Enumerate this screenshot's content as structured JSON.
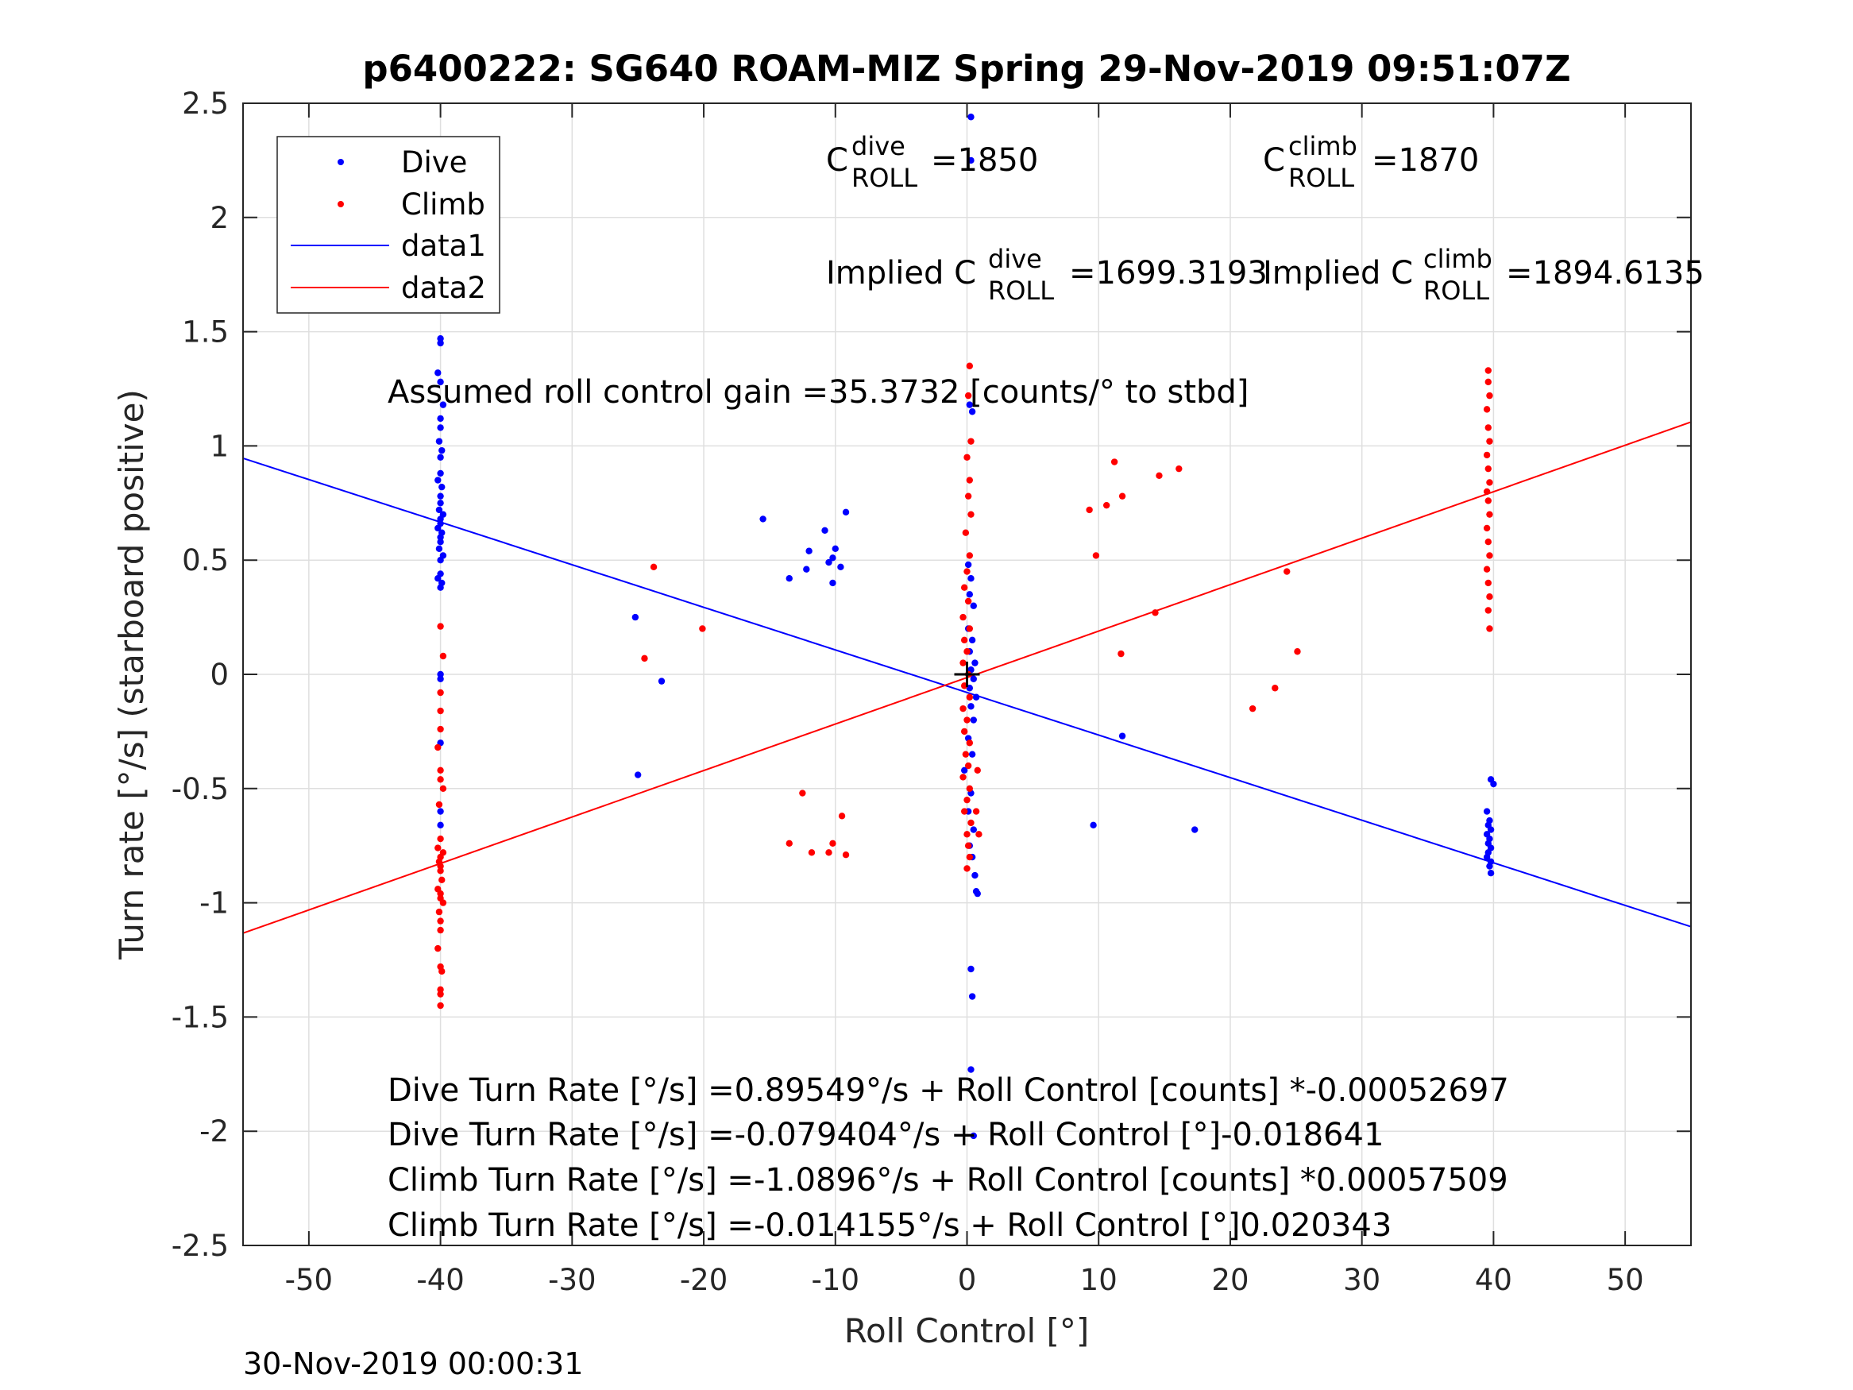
{
  "chart_data": {
    "type": "scatter",
    "title": "p6400222: SG640 ROAM-MIZ Spring 29-Nov-2019 09:51:07Z",
    "xlabel": "Roll Control [°]",
    "ylabel": "Turn rate [°/s] (starboard positive)",
    "xlim": [
      -55,
      55
    ],
    "ylim": [
      -2.5,
      2.5
    ],
    "xticks": [
      -50,
      -40,
      -30,
      -20,
      -10,
      0,
      10,
      20,
      30,
      40,
      50
    ],
    "yticks": [
      -2.5,
      -2,
      -1.5,
      -1,
      -0.5,
      0,
      0.5,
      1,
      1.5,
      2,
      2.5
    ],
    "xtick_labels": [
      "-50",
      "-40",
      "-30",
      "-20",
      "-10",
      "0",
      "10",
      "20",
      "30",
      "40",
      "50"
    ],
    "ytick_labels": [
      "-2.5",
      "-2",
      "-1.5",
      "-1",
      "-0.5",
      "0",
      "0.5",
      "1",
      "1.5",
      "2",
      "2.5"
    ],
    "grid": true,
    "legend_position": "top-left",
    "legend": [
      {
        "name": "Dive",
        "style": "dots",
        "color": "#0000ff"
      },
      {
        "name": "Climb",
        "style": "dots",
        "color": "#ff0000"
      },
      {
        "name": "data1",
        "style": "line",
        "color": "#0000ff"
      },
      {
        "name": "data2",
        "style": "line",
        "color": "#ff0000"
      }
    ],
    "series": [
      {
        "name": "Dive",
        "color": "#0000ff",
        "points": [
          [
            -40,
            1.47
          ],
          [
            -40,
            1.45
          ],
          [
            -40.2,
            1.32
          ],
          [
            -40,
            1.28
          ],
          [
            -39.8,
            1.18
          ],
          [
            -40,
            1.12
          ],
          [
            -40,
            1.08
          ],
          [
            -40.1,
            1.02
          ],
          [
            -39.9,
            0.98
          ],
          [
            -40,
            0.95
          ],
          [
            -40,
            0.88
          ],
          [
            -40.2,
            0.85
          ],
          [
            -39.9,
            0.82
          ],
          [
            -40,
            0.78
          ],
          [
            -40,
            0.75
          ],
          [
            -40.1,
            0.72
          ],
          [
            -39.8,
            0.7
          ],
          [
            -40,
            0.68
          ],
          [
            -40,
            0.66
          ],
          [
            -40.2,
            0.64
          ],
          [
            -39.9,
            0.62
          ],
          [
            -40,
            0.6
          ],
          [
            -40,
            0.58
          ],
          [
            -40.1,
            0.55
          ],
          [
            -39.8,
            0.52
          ],
          [
            -40,
            0.5
          ],
          [
            -40,
            0.44
          ],
          [
            -40.2,
            0.42
          ],
          [
            -39.9,
            0.4
          ],
          [
            -40,
            0.38
          ],
          [
            -40,
            0.0
          ],
          [
            -40,
            -0.02
          ],
          [
            -40,
            -0.3
          ],
          [
            -40,
            -0.6
          ],
          [
            -40,
            -0.66
          ],
          [
            -25.2,
            0.25
          ],
          [
            -23.2,
            -0.03
          ],
          [
            -25,
            -0.44
          ],
          [
            -15.5,
            0.68
          ],
          [
            -13.5,
            0.42
          ],
          [
            -12.2,
            0.46
          ],
          [
            -12,
            0.54
          ],
          [
            -10.8,
            0.63
          ],
          [
            -10.5,
            0.49
          ],
          [
            -10.2,
            0.51
          ],
          [
            -10,
            0.55
          ],
          [
            -10.2,
            0.4
          ],
          [
            -9.6,
            0.47
          ],
          [
            -9.2,
            0.71
          ],
          [
            0.3,
            2.44
          ],
          [
            0.3,
            2.25
          ],
          [
            0.2,
            1.18
          ],
          [
            0.4,
            1.15
          ],
          [
            0.1,
            0.48
          ],
          [
            0.3,
            0.42
          ],
          [
            0.2,
            0.35
          ],
          [
            0.5,
            0.3
          ],
          [
            0.1,
            0.2
          ],
          [
            0.4,
            0.15
          ],
          [
            0.2,
            0.1
          ],
          [
            0.6,
            0.05
          ],
          [
            0.3,
            0.02
          ],
          [
            0.5,
            -0.02
          ],
          [
            0.2,
            -0.06
          ],
          [
            0.7,
            -0.1
          ],
          [
            0.3,
            -0.14
          ],
          [
            0.5,
            -0.2
          ],
          [
            0.1,
            -0.28
          ],
          [
            0.4,
            -0.35
          ],
          [
            -0.2,
            -0.42
          ],
          [
            0.3,
            -0.52
          ],
          [
            0.1,
            -0.6
          ],
          [
            0.5,
            -0.68
          ],
          [
            0.2,
            -0.75
          ],
          [
            0.4,
            -0.8
          ],
          [
            0.6,
            -0.88
          ],
          [
            0.7,
            -0.95
          ],
          [
            0.8,
            -0.96
          ],
          [
            0.3,
            -1.29
          ],
          [
            0.4,
            -1.41
          ],
          [
            0.3,
            -1.73
          ],
          [
            0.5,
            -2.02
          ],
          [
            11.8,
            -0.27
          ],
          [
            9.6,
            -0.66
          ],
          [
            17.3,
            -0.68
          ],
          [
            39.8,
            -0.46
          ],
          [
            40,
            -0.48
          ],
          [
            39.5,
            -0.6
          ],
          [
            39.7,
            -0.64
          ],
          [
            39.6,
            -0.66
          ],
          [
            39.8,
            -0.68
          ],
          [
            39.5,
            -0.7
          ],
          [
            39.7,
            -0.72
          ],
          [
            39.6,
            -0.74
          ],
          [
            39.8,
            -0.76
          ],
          [
            39.6,
            -0.78
          ],
          [
            39.5,
            -0.8
          ],
          [
            39.8,
            -0.82
          ],
          [
            39.7,
            -0.84
          ],
          [
            39.8,
            -0.87
          ]
        ]
      },
      {
        "name": "Climb",
        "color": "#ff0000",
        "points": [
          [
            -40,
            0.21
          ],
          [
            -39.8,
            0.08
          ],
          [
            -40,
            -0.08
          ],
          [
            -40,
            -0.16
          ],
          [
            -40,
            -0.24
          ],
          [
            -40.2,
            -0.32
          ],
          [
            -40,
            -0.42
          ],
          [
            -40,
            -0.46
          ],
          [
            -39.8,
            -0.5
          ],
          [
            -40.1,
            -0.57
          ],
          [
            -40,
            -0.72
          ],
          [
            -40.2,
            -0.76
          ],
          [
            -39.8,
            -0.78
          ],
          [
            -40,
            -0.8
          ],
          [
            -40.1,
            -0.82
          ],
          [
            -40,
            -0.84
          ],
          [
            -40,
            -0.86
          ],
          [
            -39.9,
            -0.9
          ],
          [
            -40.2,
            -0.94
          ],
          [
            -40,
            -0.96
          ],
          [
            -40,
            -0.98
          ],
          [
            -39.8,
            -1.0
          ],
          [
            -40.1,
            -1.04
          ],
          [
            -40,
            -1.08
          ],
          [
            -40,
            -1.12
          ],
          [
            -40.2,
            -1.2
          ],
          [
            -40,
            -1.28
          ],
          [
            -39.9,
            -1.3
          ],
          [
            -40,
            -1.38
          ],
          [
            -40,
            -1.4
          ],
          [
            -40,
            -1.45
          ],
          [
            -23.8,
            0.47
          ],
          [
            -24.5,
            0.07
          ],
          [
            -20.1,
            0.2
          ],
          [
            -12.5,
            -0.52
          ],
          [
            -13.5,
            -0.74
          ],
          [
            -11.8,
            -0.78
          ],
          [
            -10.5,
            -0.78
          ],
          [
            -10.2,
            -0.74
          ],
          [
            -9.5,
            -0.62
          ],
          [
            -9.2,
            -0.79
          ],
          [
            0.2,
            1.35
          ],
          [
            0.1,
            1.22
          ],
          [
            0.3,
            1.02
          ],
          [
            0.0,
            0.95
          ],
          [
            0.2,
            0.85
          ],
          [
            0.1,
            0.78
          ],
          [
            0.3,
            0.7
          ],
          [
            -0.1,
            0.62
          ],
          [
            0.2,
            0.52
          ],
          [
            0.0,
            0.45
          ],
          [
            -0.2,
            0.38
          ],
          [
            0.1,
            0.32
          ],
          [
            -0.3,
            0.25
          ],
          [
            0.2,
            0.2
          ],
          [
            -0.2,
            0.15
          ],
          [
            0.0,
            0.1
          ],
          [
            -0.3,
            0.05
          ],
          [
            0.1,
            0.0
          ],
          [
            -0.2,
            -0.05
          ],
          [
            0.2,
            -0.1
          ],
          [
            -0.3,
            -0.15
          ],
          [
            0.0,
            -0.2
          ],
          [
            -0.2,
            -0.25
          ],
          [
            0.2,
            -0.3
          ],
          [
            -0.1,
            -0.35
          ],
          [
            0.1,
            -0.4
          ],
          [
            -0.3,
            -0.45
          ],
          [
            0.2,
            -0.5
          ],
          [
            0.0,
            -0.55
          ],
          [
            -0.2,
            -0.6
          ],
          [
            0.3,
            -0.65
          ],
          [
            0.0,
            -0.7
          ],
          [
            0.1,
            -0.75
          ],
          [
            0.2,
            -0.8
          ],
          [
            0.0,
            -0.85
          ],
          [
            0.8,
            -0.42
          ],
          [
            0.7,
            -0.6
          ],
          [
            0.9,
            -0.7
          ],
          [
            9.3,
            0.72
          ],
          [
            10.6,
            0.74
          ],
          [
            11.2,
            0.93
          ],
          [
            11.8,
            0.78
          ],
          [
            9.8,
            0.52
          ],
          [
            14.6,
            0.87
          ],
          [
            16.1,
            0.9
          ],
          [
            11.7,
            0.09
          ],
          [
            14.3,
            0.27
          ],
          [
            21.7,
            -0.15
          ],
          [
            23.4,
            -0.06
          ],
          [
            24.3,
            0.45
          ],
          [
            25.1,
            0.1
          ],
          [
            39.6,
            1.33
          ],
          [
            39.6,
            1.28
          ],
          [
            39.7,
            1.22
          ],
          [
            39.5,
            1.16
          ],
          [
            39.6,
            1.08
          ],
          [
            39.7,
            1.02
          ],
          [
            39.5,
            0.96
          ],
          [
            39.6,
            0.9
          ],
          [
            39.7,
            0.84
          ],
          [
            39.5,
            0.8
          ],
          [
            39.6,
            0.76
          ],
          [
            39.7,
            0.7
          ],
          [
            39.5,
            0.64
          ],
          [
            39.6,
            0.58
          ],
          [
            39.7,
            0.52
          ],
          [
            39.5,
            0.46
          ],
          [
            39.6,
            0.4
          ],
          [
            39.7,
            0.34
          ],
          [
            39.6,
            0.28
          ],
          [
            39.7,
            0.2
          ]
        ]
      },
      {
        "name": "data1",
        "color": "#0000ff",
        "type": "line",
        "intercept": -0.079404,
        "slope": -0.018641
      },
      {
        "name": "data2",
        "color": "#ff0000",
        "type": "line",
        "intercept": -0.014155,
        "slope": 0.020343
      }
    ],
    "annotations": {
      "c_dive_main": "C",
      "c_dive_sup": "dive",
      "c_dive_sub": "ROLL",
      "c_dive_value": "=1850",
      "c_climb_main": "C",
      "c_climb_sup": "climb",
      "c_climb_sub": "ROLL",
      "c_climb_value": "=1870",
      "implied_dive_main": "Implied C",
      "implied_dive_sup": "dive",
      "implied_dive_sub": "ROLL",
      "implied_dive_value": "=1699.3193",
      "implied_climb_main": "Implied C",
      "implied_climb_sup": "climb",
      "implied_climb_sub": "ROLL",
      "implied_climb_value": "=1894.6135",
      "gain": "Assumed roll control gain =35.3732 [counts/° to stbd]",
      "eq1": "Dive Turn Rate [°/s] =0.89549°/s + Roll Control [counts] *-0.00052697",
      "eq2": "Dive Turn Rate [°/s] =-0.079404°/s + Roll Control [°]-0.018641",
      "eq3": "Climb Turn Rate [°/s] =-1.0896°/s + Roll Control [counts] *0.00057509",
      "eq4": "Climb Turn Rate [°/s] =-0.014155°/s + Roll Control [°]0.020343"
    },
    "center_marker": {
      "x": 0,
      "y": 0,
      "symbol": "+"
    }
  },
  "footer_timestamp": "30-Nov-2019 00:00:31"
}
